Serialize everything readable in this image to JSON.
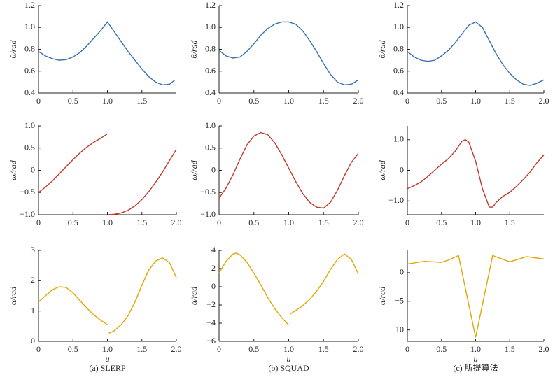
{
  "chart_data": [
    {
      "type": "line",
      "ylabel": "θ/rad",
      "color": "#3a6fb0",
      "xlim": [
        0,
        2
      ],
      "ylim": [
        0.4,
        1.2
      ],
      "xticks": [
        0,
        0.5,
        {
          "value": 1,
          "label": "1.0"
        },
        1.5
      ],
      "yticks": [
        0.4,
        0.6,
        0.8,
        {
          "value": 1,
          "label": "1.0"
        },
        1.2
      ],
      "x": [
        0,
        0.1,
        0.2,
        0.3,
        0.4,
        0.5,
        0.6,
        0.7,
        0.8,
        0.9,
        1.0,
        1.1,
        1.2,
        1.3,
        1.4,
        1.5,
        1.6,
        1.7,
        1.8,
        1.9,
        1.98
      ],
      "values": [
        0.78,
        0.74,
        0.715,
        0.7,
        0.705,
        0.73,
        0.77,
        0.83,
        0.9,
        0.97,
        1.05,
        0.96,
        0.87,
        0.78,
        0.7,
        0.62,
        0.55,
        0.5,
        0.475,
        0.48,
        0.52
      ]
    },
    {
      "type": "line",
      "ylabel": "θ/rad",
      "color": "#3a6fb0",
      "xlim": [
        0,
        2
      ],
      "ylim": [
        0.4,
        1.2
      ],
      "xticks": [
        0,
        0.5,
        {
          "value": 1,
          "label": "1.0"
        },
        1.5,
        {
          "value": 2,
          "label": "2.0"
        }
      ],
      "yticks": [
        0.4,
        0.6,
        0.8,
        {
          "value": 1,
          "label": "1.0"
        },
        1.2
      ],
      "x": [
        0,
        0.1,
        0.2,
        0.3,
        0.4,
        0.5,
        0.6,
        0.7,
        0.8,
        0.9,
        1.0,
        1.1,
        1.2,
        1.3,
        1.4,
        1.5,
        1.6,
        1.7,
        1.8,
        1.9,
        2.0
      ],
      "values": [
        0.79,
        0.74,
        0.72,
        0.73,
        0.78,
        0.85,
        0.93,
        0.99,
        1.03,
        1.05,
        1.05,
        1.03,
        0.97,
        0.88,
        0.78,
        0.67,
        0.57,
        0.5,
        0.475,
        0.48,
        0.52
      ]
    },
    {
      "type": "line",
      "ylabel": "θ/rad",
      "color": "#3a6fb0",
      "xlim": [
        0,
        2
      ],
      "ylim": [
        0.4,
        1.2
      ],
      "xticks": [
        0,
        0.5,
        {
          "value": 1,
          "label": "1.0"
        },
        1.5,
        {
          "value": 2,
          "label": "2.0"
        }
      ],
      "yticks": [
        0.4,
        0.6,
        0.8,
        {
          "value": 1,
          "label": "1.0"
        },
        1.2
      ],
      "x": [
        0,
        0.1,
        0.2,
        0.3,
        0.4,
        0.5,
        0.6,
        0.7,
        0.8,
        0.9,
        1.0,
        1.1,
        1.2,
        1.3,
        1.4,
        1.5,
        1.6,
        1.7,
        1.8,
        1.9,
        2.0
      ],
      "values": [
        0.78,
        0.73,
        0.7,
        0.69,
        0.7,
        0.74,
        0.79,
        0.86,
        0.94,
        1.02,
        1.05,
        1.0,
        0.88,
        0.76,
        0.66,
        0.58,
        0.52,
        0.48,
        0.47,
        0.49,
        0.52
      ]
    },
    {
      "type": "line",
      "ylabel": "ω/rad",
      "color": "#c0392b",
      "xlim": [
        0,
        2
      ],
      "ylim": [
        -1,
        1
      ],
      "xticks": [
        0,
        0.5,
        {
          "value": 1,
          "label": "1.0"
        },
        1.5,
        {
          "value": 2,
          "label": "2.0"
        }
      ],
      "yticks": [
        {
          "value": -1,
          "label": "−1.0"
        },
        {
          "value": -0.5,
          "label": "−0.5"
        },
        0,
        0.5,
        {
          "value": 1,
          "label": "1.0"
        }
      ],
      "x": [
        0,
        0.1,
        0.2,
        0.3,
        0.4,
        0.5,
        0.6,
        0.7,
        0.8,
        0.9,
        1.0,
        1.01,
        1.02,
        1.1,
        1.2,
        1.3,
        1.4,
        1.5,
        1.6,
        1.7,
        1.8,
        1.9,
        2.0
      ],
      "values": [
        -0.5,
        -0.38,
        -0.24,
        -0.08,
        0.08,
        0.24,
        0.39,
        0.52,
        0.63,
        0.72,
        0.82,
        null,
        -1.0,
        -0.99,
        -0.96,
        -0.9,
        -0.8,
        -0.66,
        -0.48,
        -0.27,
        -0.04,
        0.22,
        0.47
      ]
    },
    {
      "type": "line",
      "ylabel": "ω/rad",
      "color": "#c0392b",
      "xlim": [
        0,
        2
      ],
      "ylim": [
        -1,
        1
      ],
      "xticks": [
        0,
        0.5,
        {
          "value": 1,
          "label": "1.0"
        },
        1.5,
        {
          "value": 2,
          "label": "2.0"
        }
      ],
      "yticks": [
        {
          "value": -1,
          "label": "−1.0"
        },
        {
          "value": -0.5,
          "label": "−0.5"
        },
        0,
        0.5,
        {
          "value": 1,
          "label": "1.0"
        }
      ],
      "x": [
        0,
        0.1,
        0.2,
        0.3,
        0.4,
        0.5,
        0.6,
        0.7,
        0.8,
        0.9,
        1.0,
        1.1,
        1.2,
        1.3,
        1.4,
        1.5,
        1.6,
        1.7,
        1.8,
        1.9,
        2.0
      ],
      "values": [
        -0.63,
        -0.4,
        -0.1,
        0.25,
        0.57,
        0.77,
        0.85,
        0.8,
        0.62,
        0.35,
        0.05,
        -0.25,
        -0.52,
        -0.72,
        -0.83,
        -0.85,
        -0.72,
        -0.45,
        -0.12,
        0.18,
        0.38
      ]
    },
    {
      "type": "line",
      "ylabel": "ω/rad",
      "color": "#c0392b",
      "xlim": [
        0,
        2
      ],
      "ylim": [
        -1.45,
        1.45
      ],
      "xticks": [
        0,
        0.5,
        {
          "value": 1,
          "label": "1.0"
        },
        1.5
      ],
      "yticks": [
        {
          "value": -1,
          "label": "−1.0"
        },
        0,
        {
          "value": 1,
          "label": "1.0"
        }
      ],
      "x": [
        0,
        0.1,
        0.2,
        0.3,
        0.4,
        0.5,
        0.6,
        0.7,
        0.8,
        0.85,
        0.9,
        1.0,
        1.1,
        1.2,
        1.25,
        1.3,
        1.4,
        1.5,
        1.6,
        1.7,
        1.8,
        1.9,
        2.0
      ],
      "values": [
        -0.6,
        -0.5,
        -0.38,
        -0.2,
        0.0,
        0.2,
        0.38,
        0.62,
        0.95,
        1.0,
        0.92,
        0.3,
        -0.6,
        -1.2,
        -1.2,
        -1.05,
        -0.85,
        -0.72,
        -0.52,
        -0.3,
        -0.05,
        0.25,
        0.5
      ]
    },
    {
      "type": "line",
      "ylabel": "α/rad",
      "xlabel": "u",
      "color": "#e0a800",
      "xlim": [
        0,
        2
      ],
      "ylim": [
        0,
        3
      ],
      "xticks": [
        0,
        0.5,
        {
          "value": 1,
          "label": "1.0"
        },
        1.5,
        {
          "value": 2,
          "label": "2.0"
        }
      ],
      "yticks": [
        0,
        1,
        2,
        3
      ],
      "x": [
        0,
        0.1,
        0.2,
        0.3,
        0.4,
        0.5,
        0.6,
        0.7,
        0.8,
        0.9,
        1.0,
        1.01,
        1.02,
        1.1,
        1.2,
        1.3,
        1.4,
        1.5,
        1.6,
        1.7,
        1.8,
        1.9,
        2.0
      ],
      "values": [
        1.3,
        1.5,
        1.7,
        1.8,
        1.78,
        1.6,
        1.35,
        1.1,
        0.88,
        0.7,
        0.55,
        null,
        0.27,
        0.35,
        0.55,
        0.85,
        1.3,
        1.85,
        2.35,
        2.65,
        2.75,
        2.6,
        2.1
      ]
    },
    {
      "type": "line",
      "ylabel": "α/rad",
      "xlabel": "u",
      "color": "#e0a800",
      "xlim": [
        0,
        2
      ],
      "ylim": [
        -6,
        4
      ],
      "xticks": [
        0,
        0.5,
        {
          "value": 1,
          "label": "1.0"
        },
        1.5,
        {
          "value": 2,
          "label": "2.0"
        }
      ],
      "yticks": [
        {
          "value": -6,
          "label": "−6"
        },
        {
          "value": -4,
          "label": "−4"
        },
        {
          "value": -2,
          "label": "−2"
        },
        0,
        2,
        4
      ],
      "x": [
        0,
        0.1,
        0.2,
        0.25,
        0.3,
        0.4,
        0.5,
        0.6,
        0.7,
        0.8,
        0.9,
        1.0,
        1.01,
        1.02,
        1.1,
        1.2,
        1.3,
        1.4,
        1.5,
        1.6,
        1.7,
        1.8,
        1.9,
        2.0
      ],
      "values": [
        1.5,
        2.8,
        3.6,
        3.7,
        3.5,
        2.7,
        1.5,
        0.2,
        -1.2,
        -2.4,
        -3.4,
        -4.2,
        null,
        -3.0,
        -2.6,
        -2.1,
        -1.4,
        -0.5,
        0.6,
        1.9,
        3.0,
        3.6,
        3.0,
        1.4
      ]
    },
    {
      "type": "line",
      "ylabel": "α/rad",
      "xlabel": "u",
      "color": "#e0a800",
      "xlim": [
        0,
        2
      ],
      "ylim": [
        -12,
        3.9
      ],
      "xticks": [
        0,
        0.5,
        {
          "value": 1,
          "label": "1.0"
        },
        1.5,
        {
          "value": 2,
          "label": "2.0"
        }
      ],
      "yticks": [
        {
          "value": -10,
          "label": "−10"
        },
        {
          "value": -5,
          "label": "−5"
        },
        0
      ],
      "x": [
        0,
        0.25,
        0.5,
        0.6,
        0.75,
        1.0,
        1.25,
        1.5,
        1.75,
        2.0
      ],
      "values": [
        1.5,
        2.0,
        1.8,
        2.2,
        3.0,
        -11.3,
        3.0,
        1.9,
        2.8,
        2.4
      ]
    }
  ],
  "captions": [
    "(a) SLERP",
    "(b) SQUAD",
    "(c) 所提算法"
  ]
}
